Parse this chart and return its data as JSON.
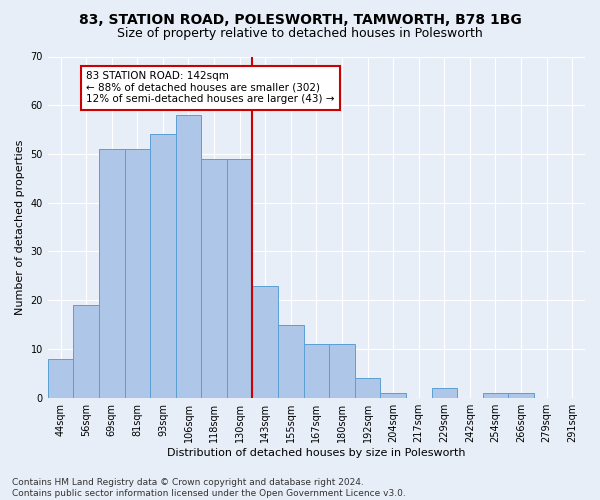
{
  "title": "83, STATION ROAD, POLESWORTH, TAMWORTH, B78 1BG",
  "subtitle": "Size of property relative to detached houses in Polesworth",
  "xlabel": "Distribution of detached houses by size in Polesworth",
  "ylabel": "Number of detached properties",
  "categories": [
    "44sqm",
    "56sqm",
    "69sqm",
    "81sqm",
    "93sqm",
    "106sqm",
    "118sqm",
    "130sqm",
    "143sqm",
    "155sqm",
    "167sqm",
    "180sqm",
    "192sqm",
    "204sqm",
    "217sqm",
    "229sqm",
    "242sqm",
    "254sqm",
    "266sqm",
    "279sqm",
    "291sqm"
  ],
  "values": [
    8,
    19,
    51,
    51,
    54,
    58,
    49,
    49,
    23,
    15,
    11,
    11,
    4,
    1,
    0,
    2,
    0,
    1,
    1,
    0,
    0
  ],
  "bar_color": "#aec6e8",
  "bar_edge_color": "#5a9fd4",
  "vline_index": 8,
  "annotation_text": "83 STATION ROAD: 142sqm\n← 88% of detached houses are smaller (302)\n12% of semi-detached houses are larger (43) →",
  "annotation_box_facecolor": "#ffffff",
  "annotation_box_edgecolor": "#cc0000",
  "vline_color": "#cc0000",
  "ylim": [
    0,
    70
  ],
  "yticks": [
    0,
    10,
    20,
    30,
    40,
    50,
    60,
    70
  ],
  "footer_text": "Contains HM Land Registry data © Crown copyright and database right 2024.\nContains public sector information licensed under the Open Government Licence v3.0.",
  "bg_color": "#e8eef7",
  "grid_color": "#ffffff",
  "title_fontsize": 10,
  "subtitle_fontsize": 9,
  "ylabel_fontsize": 8,
  "xlabel_fontsize": 8,
  "tick_fontsize": 7,
  "annotation_fontsize": 7.5,
  "footer_fontsize": 6.5
}
